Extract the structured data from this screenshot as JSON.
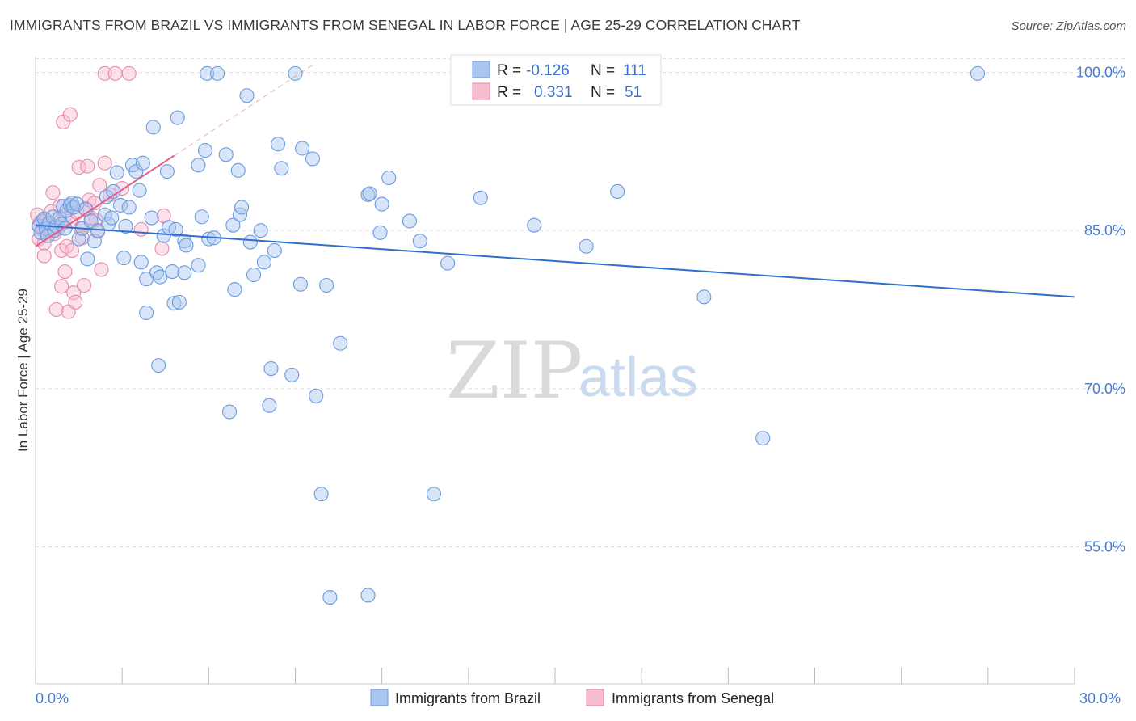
{
  "header": {
    "title": "IMMIGRANTS FROM BRAZIL VS IMMIGRANTS FROM SENEGAL IN LABOR FORCE | AGE 25-29 CORRELATION CHART",
    "source": "Source: ZipAtlas.com"
  },
  "watermark": {
    "zip": "ZIP",
    "atlas": "atlas"
  },
  "colors": {
    "brazil_fill": "#a9c6f0",
    "brazil_stroke": "#6a9be0",
    "brazil_line": "#2f6fd0",
    "senegal_fill": "#f7bcd0",
    "senegal_stroke": "#e88aaa",
    "senegal_line": "#e0608a",
    "grid": "#dddddd",
    "tick_label": "#4a7bd0"
  },
  "legend": {
    "rows": [
      {
        "r_label": "R =",
        "r_value": "-0.126",
        "n_label": "N =",
        "n_value": "111"
      },
      {
        "r_label": "R =",
        "r_value": "0.331",
        "n_label": "N =",
        "n_value": "51"
      }
    ]
  },
  "chart_data": {
    "type": "scatter",
    "title": "IMMIGRANTS FROM BRAZIL VS IMMIGRANTS FROM SENEGAL IN LABOR FORCE | AGE 25-29 CORRELATION CHART",
    "xlabel": "",
    "ylabel": "In Labor Force | Age 25-29",
    "xlim": [
      0,
      30
    ],
    "ylim": [
      42,
      101.5
    ],
    "x_tick_labels": [
      "0.0%",
      "30.0%"
    ],
    "y_ticks": [
      55,
      70,
      85,
      100
    ],
    "y_tick_labels": [
      "55.0%",
      "70.0%",
      "85.0%",
      "100.0%"
    ],
    "legend_bottom": [
      "Immigrants from Brazil",
      "Immigrants from Senegal"
    ],
    "series": [
      {
        "name": "Immigrants from Brazil",
        "R": -0.126,
        "N": 111,
        "trend": {
          "x": [
            0.0,
            30.0
          ],
          "y": [
            85.5,
            78.7
          ]
        },
        "points": [
          [
            0.1,
            85.4
          ],
          [
            0.15,
            84.8
          ],
          [
            0.2,
            85.9
          ],
          [
            0.25,
            86.1
          ],
          [
            0.3,
            85.2
          ],
          [
            0.35,
            84.5
          ],
          [
            0.4,
            85.7
          ],
          [
            0.5,
            86.3
          ],
          [
            0.55,
            85.0
          ],
          [
            0.6,
            85.4
          ],
          [
            0.7,
            86.2
          ],
          [
            0.75,
            85.6
          ],
          [
            0.8,
            87.3
          ],
          [
            0.85,
            85.2
          ],
          [
            0.9,
            86.9
          ],
          [
            1.0,
            87.4
          ],
          [
            1.05,
            87.6
          ],
          [
            1.1,
            87.2
          ],
          [
            1.2,
            87.5
          ],
          [
            1.25,
            84.2
          ],
          [
            1.35,
            85.2
          ],
          [
            1.45,
            87.0
          ],
          [
            1.5,
            82.3
          ],
          [
            1.6,
            85.9
          ],
          [
            1.7,
            84.0
          ],
          [
            1.8,
            85.0
          ],
          [
            2.0,
            86.5
          ],
          [
            2.05,
            88.2
          ],
          [
            2.1,
            85.6
          ],
          [
            2.2,
            86.2
          ],
          [
            2.25,
            88.7
          ],
          [
            2.35,
            90.5
          ],
          [
            2.45,
            87.4
          ],
          [
            2.55,
            82.4
          ],
          [
            2.6,
            85.4
          ],
          [
            2.7,
            87.2
          ],
          [
            2.8,
            91.2
          ],
          [
            2.9,
            90.6
          ],
          [
            3.0,
            88.8
          ],
          [
            3.05,
            82.0
          ],
          [
            3.1,
            91.4
          ],
          [
            3.2,
            80.4
          ],
          [
            3.2,
            77.2
          ],
          [
            3.35,
            86.2
          ],
          [
            3.4,
            94.8
          ],
          [
            3.5,
            81.0
          ],
          [
            3.55,
            72.2
          ],
          [
            3.6,
            80.6
          ],
          [
            3.7,
            84.5
          ],
          [
            3.8,
            90.6
          ],
          [
            3.85,
            85.3
          ],
          [
            3.95,
            81.1
          ],
          [
            4.0,
            78.1
          ],
          [
            4.05,
            85.1
          ],
          [
            4.1,
            95.7
          ],
          [
            4.15,
            78.2
          ],
          [
            4.3,
            84.0
          ],
          [
            4.3,
            81.0
          ],
          [
            4.35,
            83.6
          ],
          [
            4.7,
            91.2
          ],
          [
            4.7,
            81.7
          ],
          [
            4.8,
            86.3
          ],
          [
            4.9,
            92.6
          ],
          [
            4.95,
            99.9
          ],
          [
            5.0,
            84.2
          ],
          [
            5.15,
            84.3
          ],
          [
            5.25,
            99.9
          ],
          [
            5.5,
            92.2
          ],
          [
            5.6,
            67.8
          ],
          [
            5.7,
            85.5
          ],
          [
            5.75,
            79.4
          ],
          [
            5.85,
            90.7
          ],
          [
            5.9,
            86.5
          ],
          [
            5.95,
            87.2
          ],
          [
            6.1,
            97.8
          ],
          [
            6.2,
            83.9
          ],
          [
            6.3,
            80.8
          ],
          [
            6.5,
            85.0
          ],
          [
            6.6,
            82.0
          ],
          [
            6.75,
            68.4
          ],
          [
            6.8,
            71.9
          ],
          [
            6.9,
            83.1
          ],
          [
            7.0,
            93.2
          ],
          [
            7.1,
            90.9
          ],
          [
            7.4,
            71.3
          ],
          [
            7.5,
            99.9
          ],
          [
            7.65,
            79.9
          ],
          [
            7.7,
            92.8
          ],
          [
            8.0,
            91.8
          ],
          [
            8.1,
            69.3
          ],
          [
            8.25,
            60.0
          ],
          [
            8.4,
            79.8
          ],
          [
            8.5,
            50.2
          ],
          [
            8.8,
            74.3
          ],
          [
            9.6,
            50.4
          ],
          [
            9.6,
            88.4
          ],
          [
            9.65,
            88.5
          ],
          [
            9.95,
            84.8
          ],
          [
            10.0,
            87.5
          ],
          [
            10.2,
            90.0
          ],
          [
            10.8,
            85.9
          ],
          [
            11.1,
            84.0
          ],
          [
            11.5,
            60.0
          ],
          [
            11.9,
            81.9
          ],
          [
            12.85,
            88.1
          ],
          [
            14.4,
            85.5
          ],
          [
            15.9,
            83.5
          ],
          [
            16.8,
            88.7
          ],
          [
            19.3,
            78.7
          ],
          [
            21.0,
            65.3
          ],
          [
            27.2,
            99.9
          ]
        ]
      },
      {
        "name": "Immigrants from Senegal",
        "R": 0.331,
        "N": 51,
        "trend": {
          "x": [
            0.0,
            4.0
          ],
          "y": [
            83.5,
            92.1
          ]
        },
        "trend_ext": {
          "x": [
            4.0,
            8.0
          ],
          "y": [
            92.1,
            100.7
          ]
        },
        "points": [
          [
            0.05,
            86.5
          ],
          [
            0.1,
            85.5
          ],
          [
            0.1,
            84.2
          ],
          [
            0.15,
            85.8
          ],
          [
            0.2,
            85.1
          ],
          [
            0.25,
            83.8
          ],
          [
            0.25,
            82.6
          ],
          [
            0.3,
            86.0
          ],
          [
            0.35,
            85.6
          ],
          [
            0.4,
            84.9
          ],
          [
            0.45,
            86.8
          ],
          [
            0.5,
            88.6
          ],
          [
            0.55,
            84.7
          ],
          [
            0.6,
            77.5
          ],
          [
            0.65,
            85.2
          ],
          [
            0.7,
            87.3
          ],
          [
            0.75,
            83.1
          ],
          [
            0.75,
            79.7
          ],
          [
            0.8,
            95.3
          ],
          [
            0.85,
            86.4
          ],
          [
            0.85,
            81.1
          ],
          [
            0.9,
            83.5
          ],
          [
            0.95,
            77.3
          ],
          [
            1.0,
            96.0
          ],
          [
            1.0,
            85.9
          ],
          [
            1.05,
            83.1
          ],
          [
            1.1,
            79.1
          ],
          [
            1.15,
            78.2
          ],
          [
            1.2,
            86.7
          ],
          [
            1.25,
            91.0
          ],
          [
            1.3,
            85.2
          ],
          [
            1.35,
            84.3
          ],
          [
            1.4,
            79.8
          ],
          [
            1.45,
            87.1
          ],
          [
            1.5,
            91.1
          ],
          [
            1.55,
            87.9
          ],
          [
            1.6,
            86.2
          ],
          [
            1.7,
            87.6
          ],
          [
            1.75,
            86.0
          ],
          [
            1.8,
            84.9
          ],
          [
            1.85,
            89.3
          ],
          [
            1.9,
            81.3
          ],
          [
            2.0,
            91.4
          ],
          [
            2.0,
            99.9
          ],
          [
            2.15,
            88.4
          ],
          [
            2.3,
            99.9
          ],
          [
            2.5,
            89.0
          ],
          [
            2.7,
            99.9
          ],
          [
            3.05,
            85.1
          ],
          [
            3.65,
            83.3
          ],
          [
            3.7,
            86.4
          ]
        ]
      }
    ]
  }
}
